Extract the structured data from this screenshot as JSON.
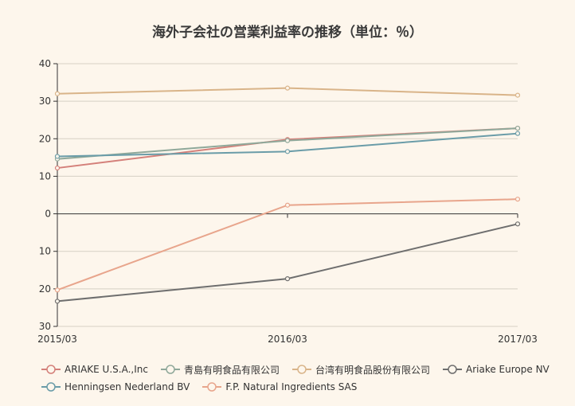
{
  "chart_data": {
    "type": "line",
    "title": "海外子会社の営業利益率の推移（単位：％）",
    "categories": [
      "2015/03",
      "2016/03",
      "2017/03"
    ],
    "ylim": [
      -30,
      40
    ],
    "y_ticks": [
      40,
      30,
      20,
      10,
      0,
      -10,
      -20,
      -30
    ],
    "y_tick_labels": [
      "40",
      "30",
      "20",
      "10",
      "0",
      "10",
      "20",
      "30"
    ],
    "grid": true,
    "legend_position": "bottom",
    "series": [
      {
        "name": "ARIAKE U.S.A.,Inc",
        "color": "#d4807a",
        "values": [
          12.2,
          19.8,
          22.8
        ]
      },
      {
        "name": "青島有明食品有限公司",
        "color": "#8fa89a",
        "values": [
          14.6,
          19.5,
          22.8
        ]
      },
      {
        "name": "台湾有明食品股份有限公司",
        "color": "#d9b489",
        "values": [
          32.0,
          33.5,
          31.6
        ]
      },
      {
        "name": "Ariake Europe NV",
        "color": "#6e6e6e",
        "values": [
          -23.3,
          -17.3,
          -2.7
        ]
      },
      {
        "name": "Henningsen Nederland BV",
        "color": "#6a9ca8",
        "values": [
          15.3,
          16.6,
          21.4
        ]
      },
      {
        "name": "F.P. Natural Ingredients SAS",
        "color": "#e8a58c",
        "values": [
          -20.3,
          2.3,
          3.9
        ]
      }
    ]
  }
}
